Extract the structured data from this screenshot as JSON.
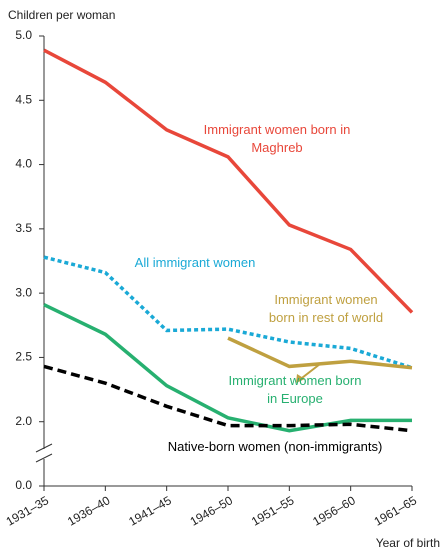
{
  "chart_data": {
    "type": "line",
    "ylabel": "Children per woman",
    "xlabel": "Year of birth",
    "categories": [
      "1931–35",
      "1936–40",
      "1941–45",
      "1946–50",
      "1951–55",
      "1956–60",
      "1961–65"
    ],
    "series": [
      {
        "name": "Immigrant women born in Maghreb",
        "color": "#e8473a",
        "dash": "solid",
        "values": [
          4.89,
          4.64,
          4.27,
          4.06,
          3.53,
          3.34,
          2.85
        ]
      },
      {
        "name": "All immigrant women",
        "color": "#1aa9d6",
        "dash": "dotted",
        "values": [
          3.28,
          3.16,
          2.71,
          2.72,
          2.62,
          2.57,
          2.42
        ]
      },
      {
        "name": "Immigrant women born in rest of world",
        "color": "#bfa040",
        "dash": "solid",
        "values": [
          null,
          null,
          null,
          2.65,
          2.43,
          2.47,
          2.42
        ]
      },
      {
        "name": "Immigrant women born in Europe",
        "color": "#27b070",
        "dash": "solid",
        "values": [
          2.91,
          2.68,
          2.28,
          2.03,
          1.93,
          2.01,
          2.01
        ]
      },
      {
        "name": "Native-born women (non-immigrants)",
        "color": "#000000",
        "dash": "dashed",
        "values": [
          2.43,
          2.3,
          2.12,
          1.97,
          1.97,
          1.98,
          1.93
        ]
      }
    ],
    "ylim": [
      0,
      5
    ],
    "ybreak": [
      0,
      1.5
    ],
    "yticks": [
      {
        "value": 0,
        "label": "0.0"
      },
      {
        "value": 2,
        "label": "2.0"
      },
      2.5,
      {
        "value": 3,
        "label": "3.0"
      },
      3.5,
      {
        "value": 4,
        "label": "4.0"
      },
      4.5,
      {
        "value": 5,
        "label": "5.0"
      }
    ],
    "grid": false
  }
}
